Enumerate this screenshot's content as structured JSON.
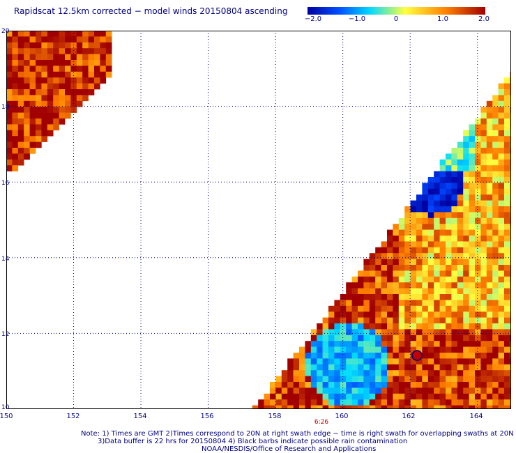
{
  "title": "Rapidscat 12.5km corrected − model winds 20150804 ascending",
  "colorbar": {
    "labels": [
      "−2.0",
      "−1.0",
      "0",
      "1.0",
      "2.0"
    ],
    "values": [
      -2.0,
      -1.0,
      0,
      1.0,
      2.0
    ],
    "colors": [
      "#0000a0",
      "#0060ff",
      "#00e0ff",
      "#ffff40",
      "#ff8000",
      "#a00000"
    ]
  },
  "map": {
    "lon_range": [
      150,
      165
    ],
    "lat_range": [
      10,
      20
    ],
    "lon_ticks": [
      "150",
      "152",
      "154",
      "156",
      "158",
      "160",
      "162",
      "164"
    ],
    "lat_ticks": [
      "20",
      "18",
      "16",
      "14",
      "12",
      "10"
    ],
    "time_label": "6:26"
  },
  "notes": [
    "Note: 1) Times are GMT 2)Times correspond to 20N at right swath edge − time is right swath for overlapping swaths at 20N",
    "3)Data buffer is 22 hrs for 20150804 4) Black barbs indicate possible rain contamination",
    "NOAA/NESDIS/Office of Research and Applications"
  ]
}
